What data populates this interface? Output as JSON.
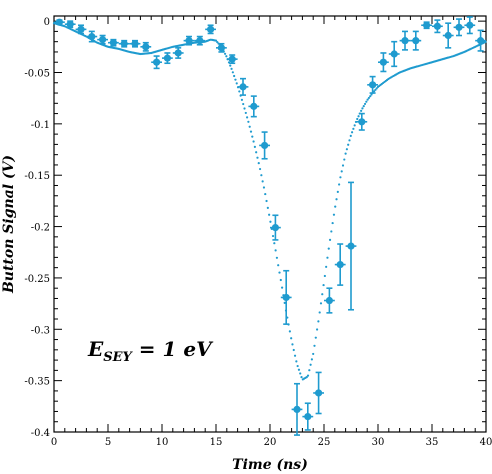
{
  "chart_data": {
    "type": "scatter",
    "title": "",
    "xlabel": "Time (ns)",
    "ylabel": "Button Signal (V)",
    "xlim": [
      0,
      40
    ],
    "ylim": [
      -0.4,
      0.005
    ],
    "x_ticks": [
      "0",
      "5",
      "10",
      "15",
      "20",
      "25",
      "30",
      "35",
      "40"
    ],
    "y_ticks": [
      "0",
      "-0.05",
      "-0.1",
      "-0.15",
      "-0.2",
      "-0.25",
      "-0.3",
      "-0.35",
      "-0.4"
    ],
    "grid": false,
    "annotation": {
      "main": "E",
      "subscript": "SEY",
      "rest": " = 1 eV"
    },
    "colors": {
      "data": "#1f9bcf"
    },
    "series": [
      {
        "style": "points-with-error-bars",
        "points": [
          {
            "x": 0.5,
            "y": -0.001,
            "xerr": 0.5,
            "yerr": 0.002
          },
          {
            "x": 1.5,
            "y": -0.003,
            "xerr": 0.5,
            "yerr": 0.003
          },
          {
            "x": 2.5,
            "y": -0.008,
            "xerr": 0.5,
            "yerr": 0.004
          },
          {
            "x": 3.5,
            "y": -0.015,
            "xerr": 0.5,
            "yerr": 0.005
          },
          {
            "x": 4.5,
            "y": -0.018,
            "xerr": 0.5,
            "yerr": 0.004
          },
          {
            "x": 5.5,
            "y": -0.021,
            "xerr": 0.5,
            "yerr": 0.003
          },
          {
            "x": 6.5,
            "y": -0.022,
            "xerr": 0.5,
            "yerr": 0.003
          },
          {
            "x": 7.5,
            "y": -0.022,
            "xerr": 0.5,
            "yerr": 0.003
          },
          {
            "x": 8.5,
            "y": -0.025,
            "xerr": 0.5,
            "yerr": 0.004
          },
          {
            "x": 9.5,
            "y": -0.04,
            "xerr": 0.5,
            "yerr": 0.006
          },
          {
            "x": 10.5,
            "y": -0.036,
            "xerr": 0.5,
            "yerr": 0.005
          },
          {
            "x": 11.5,
            "y": -0.031,
            "xerr": 0.5,
            "yerr": 0.005
          },
          {
            "x": 12.5,
            "y": -0.019,
            "xerr": 0.5,
            "yerr": 0.004
          },
          {
            "x": 13.5,
            "y": -0.019,
            "xerr": 0.5,
            "yerr": 0.004
          },
          {
            "x": 14.5,
            "y": -0.008,
            "xerr": 0.5,
            "yerr": 0.004
          },
          {
            "x": 15.5,
            "y": -0.026,
            "xerr": 0.5,
            "yerr": 0.004
          },
          {
            "x": 16.5,
            "y": -0.037,
            "xerr": 0.5,
            "yerr": 0.004
          },
          {
            "x": 17.5,
            "y": -0.064,
            "xerr": 0.5,
            "yerr": 0.008
          },
          {
            "x": 18.5,
            "y": -0.083,
            "xerr": 0.5,
            "yerr": 0.01
          },
          {
            "x": 19.5,
            "y": -0.121,
            "xerr": 0.5,
            "yerr": 0.013
          },
          {
            "x": 20.5,
            "y": -0.201,
            "xerr": 0.5,
            "yerr": 0.012
          },
          {
            "x": 21.5,
            "y": -0.269,
            "xerr": 0.5,
            "yerr": 0.026
          },
          {
            "x": 22.5,
            "y": -0.378,
            "xerr": 0.5,
            "yerr": 0.025
          },
          {
            "x": 23.5,
            "y": -0.385,
            "xerr": 0.5,
            "yerr": 0.013
          },
          {
            "x": 24.5,
            "y": -0.362,
            "xerr": 0.5,
            "yerr": 0.02
          },
          {
            "x": 25.5,
            "y": -0.272,
            "xerr": 0.5,
            "yerr": 0.012
          },
          {
            "x": 26.5,
            "y": -0.237,
            "xerr": 0.5,
            "yerr": 0.02
          },
          {
            "x": 27.5,
            "y": -0.219,
            "xerr": 0.5,
            "yerr": 0.062
          },
          {
            "x": 28.5,
            "y": -0.098,
            "xerr": 0.5,
            "yerr": 0.008
          },
          {
            "x": 29.5,
            "y": -0.062,
            "xerr": 0.5,
            "yerr": 0.008
          },
          {
            "x": 30.5,
            "y": -0.04,
            "xerr": 0.5,
            "yerr": 0.009
          },
          {
            "x": 31.5,
            "y": -0.032,
            "xerr": 0.5,
            "yerr": 0.012
          },
          {
            "x": 32.5,
            "y": -0.019,
            "xerr": 0.5,
            "yerr": 0.009
          },
          {
            "x": 33.5,
            "y": -0.019,
            "xerr": 0.5,
            "yerr": 0.009
          },
          {
            "x": 34.5,
            "y": -0.004,
            "xerr": 0.5,
            "yerr": 0.003
          },
          {
            "x": 35.5,
            "y": -0.005,
            "xerr": 0.5,
            "yerr": 0.006
          },
          {
            "x": 36.5,
            "y": -0.014,
            "xerr": 0.5,
            "yerr": 0.012
          },
          {
            "x": 37.5,
            "y": -0.006,
            "xerr": 0.5,
            "yerr": 0.008
          },
          {
            "x": 38.5,
            "y": -0.004,
            "xerr": 0.5,
            "yerr": 0.008
          },
          {
            "x": 39.5,
            "y": -0.019,
            "xerr": 0.5,
            "yerr": 0.01
          }
        ]
      },
      {
        "style": "dotted-line",
        "x": [
          0,
          1,
          2,
          3,
          4,
          5,
          6,
          7,
          8,
          9,
          10,
          11,
          12,
          13,
          14,
          14.5,
          15,
          15.5,
          16,
          16.5,
          17,
          17.5,
          18,
          18.5,
          19,
          19.5,
          20,
          20.5,
          21,
          21.5,
          22,
          22.5,
          23,
          23.5,
          24,
          24.5,
          25,
          25.5,
          26,
          26.5,
          27,
          27.5,
          28,
          28.5,
          29,
          29.5,
          30,
          31,
          32,
          33,
          34,
          35,
          36,
          37,
          38,
          39,
          40
        ],
        "y": [
          -0.002,
          -0.005,
          -0.01,
          -0.015,
          -0.021,
          -0.025,
          -0.027,
          -0.03,
          -0.032,
          -0.031,
          -0.028,
          -0.025,
          -0.023,
          -0.021,
          -0.02,
          -0.018,
          -0.019,
          -0.025,
          -0.035,
          -0.048,
          -0.063,
          -0.08,
          -0.098,
          -0.118,
          -0.14,
          -0.165,
          -0.193,
          -0.222,
          -0.252,
          -0.283,
          -0.311,
          -0.334,
          -0.349,
          -0.346,
          -0.324,
          -0.291,
          -0.254,
          -0.217,
          -0.183,
          -0.153,
          -0.129,
          -0.111,
          -0.097,
          -0.086,
          -0.077,
          -0.07,
          -0.064,
          -0.056,
          -0.05,
          -0.046,
          -0.043,
          -0.04,
          -0.037,
          -0.034,
          -0.03,
          -0.025,
          -0.02
        ]
      }
    ]
  }
}
